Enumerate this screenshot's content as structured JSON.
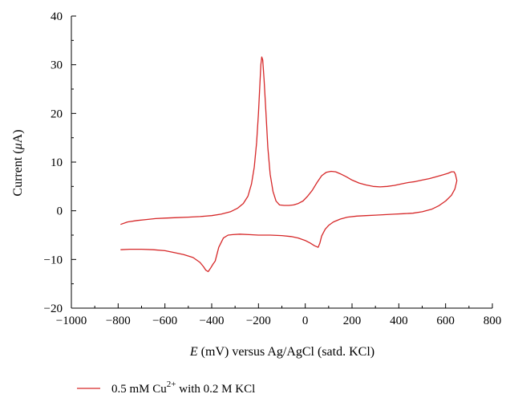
{
  "chart_data": {
    "type": "line",
    "xlabel": {
      "italic": "E",
      "rest": " (mV) versus Ag/AgCl (satd. KCl)"
    },
    "ylabel": {
      "pre": "Current (",
      "italic": "μ",
      "post": "A)"
    },
    "xlim": [
      -1000,
      800
    ],
    "ylim": [
      -20,
      40
    ],
    "xticks": [
      -1000,
      -800,
      -600,
      -400,
      -200,
      0,
      200,
      400,
      600,
      800
    ],
    "yticks": [
      -20,
      -10,
      0,
      10,
      20,
      30,
      40
    ],
    "xtick_labels": [
      "−1000",
      "−800",
      "−600",
      "−400",
      "−200",
      "0",
      "200",
      "400",
      "600",
      "800"
    ],
    "ytick_labels": [
      "−20",
      "−10",
      "0",
      "10",
      "20",
      "30",
      "40"
    ],
    "grid": false,
    "legend_position": "bottom-left",
    "series": [
      {
        "name": {
          "pre": "0.5 mM Cu",
          "sup": "2+",
          "post": " with 0.2 M KCl"
        },
        "color": "#d62728",
        "x": [
          -790,
          -760,
          -720,
          -680,
          -640,
          -600,
          -550,
          -500,
          -450,
          -400,
          -360,
          -320,
          -290,
          -265,
          -245,
          -230,
          -218,
          -208,
          -200,
          -194,
          -190,
          -186,
          -182,
          -176,
          -168,
          -160,
          -150,
          -138,
          -125,
          -110,
          -90,
          -70,
          -50,
          -30,
          -10,
          10,
          30,
          50,
          70,
          90,
          110,
          130,
          150,
          175,
          200,
          230,
          260,
          290,
          320,
          350,
          380,
          410,
          440,
          470,
          500,
          530,
          560,
          590,
          610,
          625,
          636,
          642,
          648,
          640,
          625,
          600,
          570,
          540,
          500,
          460,
          420,
          380,
          340,
          300,
          260,
          220,
          180,
          150,
          120,
          100,
          85,
          70,
          62,
          55,
          40,
          20,
          0,
          -30,
          -60,
          -100,
          -150,
          -200,
          -240,
          -280,
          -310,
          -330,
          -350,
          -370,
          -385,
          -395,
          -405,
          -415,
          -425,
          -435,
          -450,
          -480,
          -520,
          -560,
          -600,
          -650,
          -700,
          -750,
          -790
        ],
        "y": [
          -2.8,
          -2.3,
          -2.0,
          -1.8,
          -1.6,
          -1.5,
          -1.4,
          -1.3,
          -1.2,
          -1.0,
          -0.7,
          -0.2,
          0.5,
          1.5,
          3.0,
          5.5,
          9.0,
          14.0,
          20.0,
          26.0,
          30.0,
          31.6,
          31.0,
          27.0,
          20.0,
          13.0,
          7.5,
          4.0,
          2.0,
          1.2,
          1.1,
          1.1,
          1.2,
          1.5,
          2.0,
          3.0,
          4.2,
          5.8,
          7.2,
          7.9,
          8.1,
          8.0,
          7.6,
          7.0,
          6.3,
          5.7,
          5.3,
          5.0,
          4.9,
          5.0,
          5.2,
          5.5,
          5.8,
          6.0,
          6.3,
          6.6,
          7.0,
          7.4,
          7.7,
          8.0,
          8.0,
          7.5,
          6.2,
          4.5,
          3.2,
          2.0,
          1.0,
          0.3,
          -0.2,
          -0.5,
          -0.6,
          -0.7,
          -0.8,
          -0.9,
          -1.0,
          -1.1,
          -1.3,
          -1.7,
          -2.3,
          -3.0,
          -3.8,
          -5.2,
          -6.7,
          -7.5,
          -7.2,
          -6.6,
          -6.1,
          -5.6,
          -5.3,
          -5.1,
          -5.0,
          -5.0,
          -4.9,
          -4.8,
          -4.9,
          -5.0,
          -5.6,
          -7.5,
          -10.3,
          -11.0,
          -11.8,
          -12.5,
          -12.2,
          -11.5,
          -10.6,
          -9.6,
          -9.0,
          -8.6,
          -8.2,
          -8.0,
          -7.9,
          -7.9,
          -8.0
        ]
      }
    ]
  }
}
